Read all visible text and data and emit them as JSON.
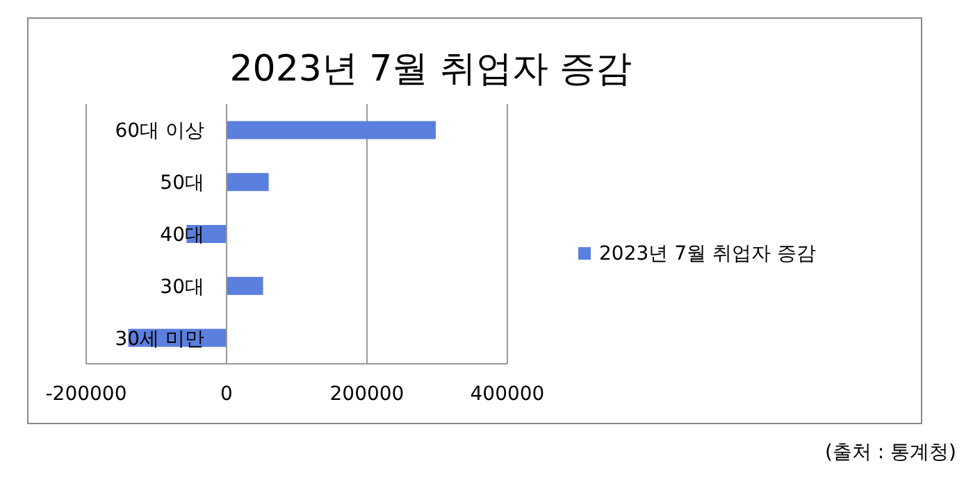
{
  "chart_data": {
    "type": "bar",
    "orientation": "horizontal",
    "title": "2023년 7월 취업자 증감",
    "categories": [
      "60대 이상",
      "50대",
      "40대",
      "30대",
      "30세 미만"
    ],
    "series": [
      {
        "name": "2023년 7월 취업자 증감",
        "color": "#5b7fde",
        "values": [
          298000,
          60000,
          -57000,
          52000,
          -140000
        ]
      }
    ],
    "xlim": [
      -200000,
      400000
    ],
    "xticks": [
      -200000,
      0,
      200000,
      400000
    ],
    "grid": "x",
    "legend": "right",
    "annotations": [
      "(출처 : 통계청)"
    ]
  }
}
